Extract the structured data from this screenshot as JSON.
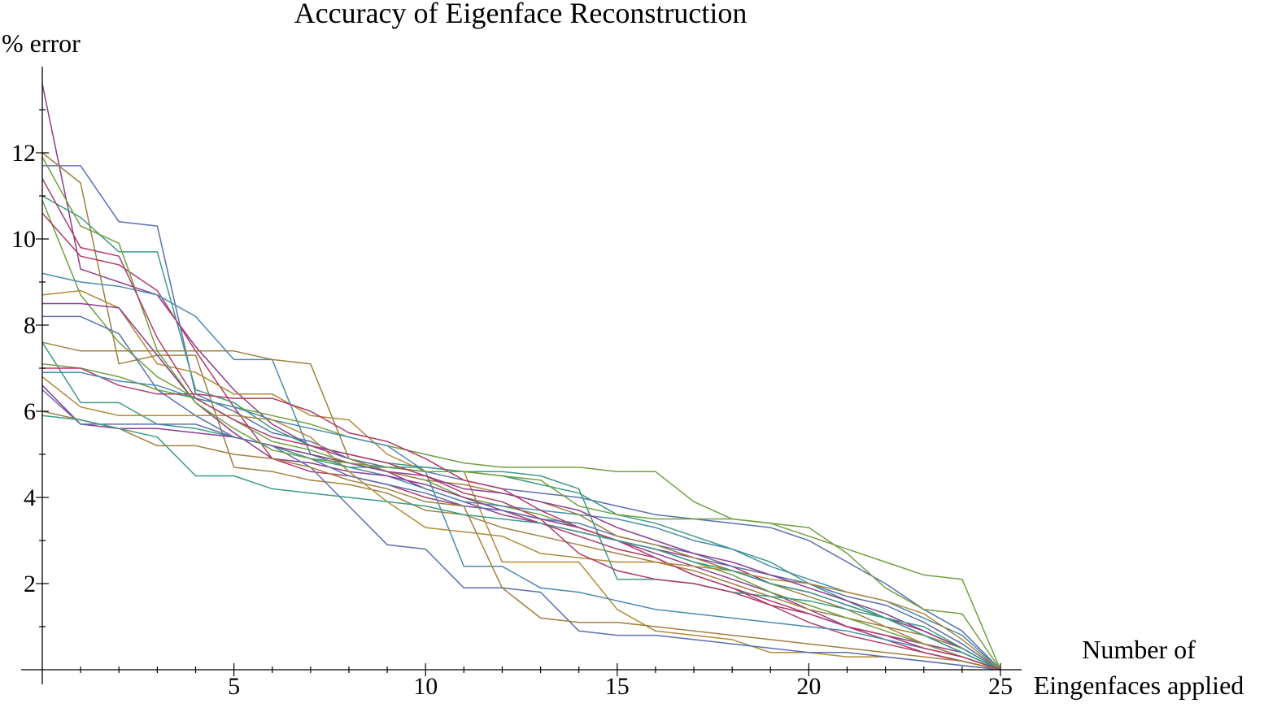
{
  "chart_data": {
    "type": "line",
    "title": "Accuracy of Eigenface Reconstruction",
    "ylabel": "% error",
    "xlabel_line1": "Number of",
    "xlabel_line2": "Eingenfaces applied",
    "xlim": [
      0,
      25
    ],
    "ylim": [
      0,
      14
    ],
    "x_ticks": [
      {
        "value": 5,
        "label": "5"
      },
      {
        "value": 10,
        "label": "10"
      },
      {
        "value": 15,
        "label": "15"
      },
      {
        "value": 20,
        "label": "20"
      },
      {
        "value": 25,
        "label": "25"
      }
    ],
    "y_ticks": [
      {
        "value": 2,
        "label": "2"
      },
      {
        "value": 4,
        "label": "4"
      },
      {
        "value": 6,
        "label": "6"
      },
      {
        "value": 8,
        "label": "8"
      },
      {
        "value": 10,
        "label": "10"
      },
      {
        "value": 12,
        "label": "12"
      }
    ],
    "minor_x_ticks": [
      1,
      2,
      3,
      4,
      6,
      7,
      8,
      9,
      11,
      12,
      13,
      14,
      16,
      17,
      18,
      19,
      21,
      22,
      23,
      24
    ],
    "minor_y_ticks": [
      1,
      3,
      5,
      7,
      9,
      11,
      13
    ],
    "grid": false,
    "legend": "none",
    "palette": [
      "#8E3C8E",
      "#5A6FB0",
      "#A08040",
      "#3C9A86",
      "#6FA040",
      "#B03A6A",
      "#4A8AB0",
      "#B08A3A"
    ],
    "x": [
      0,
      1,
      2,
      3,
      4,
      5,
      6,
      7,
      8,
      9,
      10,
      11,
      12,
      13,
      14,
      15,
      16,
      17,
      18,
      19,
      20,
      21,
      22,
      23,
      24,
      25
    ],
    "series": [
      {
        "values": [
          13.6,
          9.3,
          9.0,
          8.7,
          7.5,
          6.5,
          5.7,
          5.2,
          4.9,
          4.6,
          4.2,
          3.9,
          3.6,
          3.4,
          3.2,
          3.0,
          2.7,
          2.4,
          2.1,
          1.8,
          1.4,
          1.0,
          0.8,
          0.6,
          0.4,
          0.0
        ]
      },
      {
        "values": [
          11.7,
          11.7,
          10.4,
          10.3,
          6.4,
          6.0,
          5.5,
          5.3,
          4.9,
          4.7,
          4.6,
          4.4,
          4.2,
          4.1,
          4.0,
          3.8,
          3.6,
          3.5,
          3.4,
          3.3,
          3.0,
          2.5,
          2.0,
          1.4,
          0.9,
          0.0
        ]
      },
      {
        "values": [
          12.0,
          11.3,
          7.1,
          7.3,
          7.3,
          4.7,
          4.6,
          4.4,
          4.3,
          4.1,
          3.7,
          3.6,
          3.3,
          3.1,
          2.9,
          2.7,
          2.5,
          2.3,
          2.0,
          1.7,
          1.4,
          1.2,
          1.0,
          0.8,
          0.5,
          0.0
        ]
      },
      {
        "values": [
          11.0,
          10.5,
          9.7,
          9.7,
          6.5,
          6.2,
          5.6,
          5.2,
          5.0,
          4.8,
          4.7,
          4.6,
          4.5,
          4.3,
          4.1,
          3.6,
          3.4,
          3.1,
          2.8,
          2.5,
          2.0,
          1.6,
          1.2,
          0.8,
          0.4,
          0.0
        ]
      },
      {
        "values": [
          10.9,
          8.7,
          7.6,
          6.8,
          6.3,
          5.8,
          5.3,
          5.1,
          4.8,
          4.6,
          4.4,
          4.0,
          3.8,
          3.6,
          3.3,
          3.0,
          2.8,
          2.5,
          2.2,
          1.8,
          1.5,
          1.2,
          0.9,
          0.6,
          0.3,
          0.0
        ]
      },
      {
        "values": [
          10.6,
          9.6,
          9.4,
          8.8,
          7.4,
          6.1,
          4.9,
          4.6,
          4.5,
          4.3,
          4.0,
          3.8,
          3.7,
          3.4,
          3.1,
          2.8,
          2.6,
          2.2,
          1.9,
          1.5,
          1.1,
          0.8,
          0.6,
          0.4,
          0.2,
          0.0
        ]
      },
      {
        "values": [
          9.2,
          9.0,
          8.9,
          8.7,
          8.2,
          7.2,
          7.2,
          5.0,
          4.7,
          4.5,
          4.2,
          3.9,
          3.8,
          3.7,
          3.6,
          3.5,
          3.3,
          3.0,
          2.8,
          2.4,
          2.1,
          1.8,
          1.6,
          1.2,
          0.8,
          0.0
        ]
      },
      {
        "values": [
          8.7,
          8.8,
          8.4,
          7.1,
          6.9,
          6.4,
          6.4,
          5.9,
          5.8,
          5.0,
          4.6,
          4.6,
          2.5,
          2.5,
          2.5,
          1.4,
          0.9,
          0.8,
          0.7,
          0.4,
          0.4,
          0.3,
          0.3,
          0.2,
          0.1,
          0.0
        ]
      },
      {
        "values": [
          8.5,
          8.5,
          8.4,
          7.3,
          6.2,
          5.5,
          4.9,
          4.8,
          4.6,
          4.5,
          4.3,
          4.0,
          3.7,
          3.5,
          3.3,
          3.0,
          2.8,
          2.6,
          2.4,
          2.0,
          1.8,
          1.5,
          1.2,
          0.9,
          0.5,
          0.0
        ]
      },
      {
        "values": [
          8.2,
          8.2,
          7.8,
          6.5,
          5.9,
          5.4,
          5.2,
          4.9,
          4.5,
          4.3,
          4.1,
          3.8,
          3.7,
          3.5,
          3.4,
          3.1,
          2.9,
          2.7,
          2.4,
          2.2,
          2.0,
          1.7,
          1.5,
          1.1,
          0.6,
          0.0
        ]
      },
      {
        "values": [
          7.6,
          7.4,
          7.4,
          7.4,
          7.4,
          7.4,
          7.2,
          7.1,
          4.9,
          4.6,
          4.4,
          4.3,
          4.1,
          3.9,
          3.6,
          3.1,
          2.9,
          2.6,
          2.3,
          2.0,
          1.7,
          1.4,
          1.0,
          0.6,
          0.3,
          0.0
        ]
      },
      {
        "values": [
          7.6,
          6.2,
          6.2,
          5.7,
          5.6,
          5.4,
          5.2,
          4.9,
          4.7,
          4.7,
          4.7,
          4.6,
          4.6,
          4.5,
          4.2,
          2.1,
          2.1,
          2.0,
          1.8,
          1.7,
          1.6,
          1.4,
          1.2,
          0.8,
          0.4,
          0.0
        ]
      },
      {
        "values": [
          7.1,
          7.0,
          6.8,
          6.5,
          6.3,
          6.1,
          5.9,
          5.7,
          5.4,
          5.2,
          5.0,
          4.8,
          4.7,
          4.7,
          4.7,
          4.6,
          4.6,
          3.9,
          3.5,
          3.4,
          3.1,
          2.8,
          2.5,
          2.2,
          2.1,
          0.0
        ]
      },
      {
        "values": [
          7.0,
          7.0,
          6.6,
          6.4,
          6.4,
          6.3,
          6.3,
          6.0,
          5.5,
          5.3,
          4.9,
          4.4,
          4.2,
          3.7,
          3.3,
          3.0,
          2.6,
          2.2,
          1.9,
          1.6,
          1.3,
          1.0,
          0.7,
          0.4,
          0.2,
          0.0
        ]
      },
      {
        "values": [
          6.9,
          6.9,
          6.7,
          6.6,
          6.3,
          6.1,
          5.8,
          5.6,
          5.4,
          5.2,
          4.6,
          2.4,
          2.4,
          1.9,
          1.8,
          1.6,
          1.4,
          1.3,
          1.2,
          1.1,
          1.0,
          0.9,
          0.7,
          0.5,
          0.3,
          0.0
        ]
      },
      {
        "values": [
          6.8,
          6.1,
          5.9,
          5.9,
          5.9,
          5.9,
          5.8,
          5.4,
          4.6,
          3.9,
          3.3,
          3.2,
          3.1,
          2.7,
          2.6,
          2.5,
          2.5,
          2.4,
          2.3,
          2.1,
          2.0,
          1.8,
          1.6,
          1.3,
          0.7,
          0.0
        ]
      },
      {
        "values": [
          6.6,
          5.7,
          5.6,
          5.6,
          5.5,
          5.4,
          5.2,
          5.0,
          4.8,
          4.6,
          4.5,
          4.2,
          4.1,
          3.9,
          3.7,
          3.3,
          3.0,
          2.7,
          2.5,
          2.2,
          1.9,
          1.6,
          1.3,
          0.9,
          0.5,
          0.0
        ]
      },
      {
        "values": [
          6.5,
          5.7,
          5.7,
          5.7,
          5.7,
          5.4,
          5.2,
          4.7,
          3.8,
          2.9,
          2.8,
          1.9,
          1.9,
          1.8,
          0.9,
          0.8,
          0.8,
          0.7,
          0.6,
          0.5,
          0.4,
          0.4,
          0.3,
          0.2,
          0.1,
          0.0
        ]
      },
      {
        "values": [
          6.0,
          5.8,
          5.6,
          5.2,
          5.2,
          5.0,
          4.9,
          4.7,
          4.4,
          4.2,
          3.9,
          3.8,
          1.9,
          1.2,
          1.1,
          1.1,
          1.0,
          0.9,
          0.8,
          0.7,
          0.6,
          0.5,
          0.4,
          0.3,
          0.2,
          0.0
        ]
      },
      {
        "values": [
          5.9,
          5.8,
          5.6,
          5.4,
          4.5,
          4.5,
          4.2,
          4.1,
          4.0,
          3.9,
          3.8,
          3.6,
          3.5,
          3.4,
          3.2,
          3.0,
          2.8,
          2.5,
          2.3,
          2.0,
          1.8,
          1.5,
          1.2,
          1.0,
          0.5,
          0.0
        ]
      },
      {
        "values": [
          11.9,
          10.3,
          9.9,
          7.4,
          6.2,
          5.6,
          5.1,
          4.9,
          4.8,
          4.7,
          4.6,
          4.6,
          4.5,
          4.4,
          3.8,
          3.6,
          3.5,
          3.5,
          3.5,
          3.4,
          3.3,
          2.7,
          1.9,
          1.4,
          1.3,
          0.0
        ]
      },
      {
        "values": [
          11.4,
          9.8,
          9.6,
          7.7,
          6.3,
          5.8,
          5.4,
          5.2,
          5.0,
          4.8,
          4.5,
          4.1,
          3.9,
          3.5,
          2.7,
          2.3,
          2.1,
          2.0,
          1.8,
          1.5,
          1.3,
          1.0,
          0.8,
          0.5,
          0.3,
          0.0
        ]
      }
    ]
  }
}
